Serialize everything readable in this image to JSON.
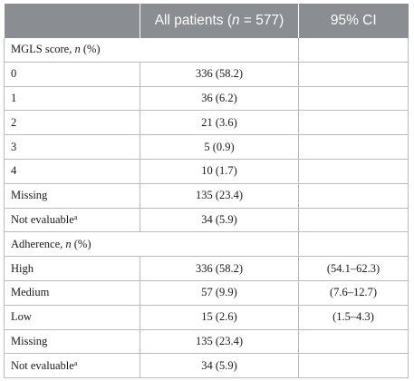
{
  "header": {
    "col_blank": "",
    "col_patients_prefix": "All patients (",
    "col_patients_n": "n",
    "col_patients_suffix": " = 577)",
    "col_ci": "95% CI"
  },
  "sections": [
    {
      "title_prefix": "MGLS score, ",
      "title_n": "n",
      "title_suffix": " (%)",
      "rows": [
        {
          "label": "0",
          "value": "336 (58.2)",
          "ci": ""
        },
        {
          "label": "1",
          "value": "36 (6.2)",
          "ci": ""
        },
        {
          "label": "2",
          "value": "21 (3.6)",
          "ci": ""
        },
        {
          "label": "3",
          "value": "5 (0.9)",
          "ci": ""
        },
        {
          "label": "4",
          "value": "10 (1.7)",
          "ci": ""
        },
        {
          "label": "Missing",
          "value": "135 (23.4)",
          "ci": ""
        },
        {
          "label": "Not evaluable",
          "sup": "a",
          "value": "34 (5.9)",
          "ci": ""
        }
      ]
    },
    {
      "title_prefix": "Adherence, ",
      "title_n": "n",
      "title_suffix": " (%)",
      "rows": [
        {
          "label": "High",
          "value": "336 (58.2)",
          "ci": "(54.1–62.3)"
        },
        {
          "label": "Medium",
          "value": "57 (9.9)",
          "ci": "(7.6–12.7)"
        },
        {
          "label": "Low",
          "value": "15 (2.6)",
          "ci": "(1.5–4.3)"
        },
        {
          "label": "Missing",
          "value": "135 (23.4)",
          "ci": ""
        },
        {
          "label": "Not evaluable",
          "sup": "a",
          "value": "34 (5.9)",
          "ci": ""
        }
      ]
    }
  ]
}
